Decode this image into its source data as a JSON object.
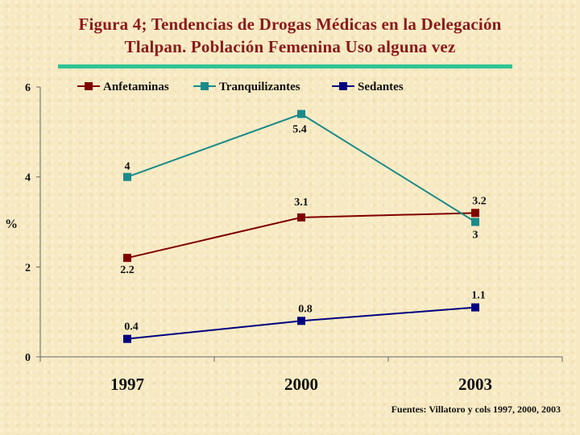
{
  "title": {
    "line1": "Figura 4; Tendencias de Drogas Médicas en  la Delegación",
    "line2": "Tlalpan. Población Femenina Uso alguna vez"
  },
  "source": "Fuentes: Villatoro y cols 1997, 2000, 2003",
  "chart_data": {
    "type": "line",
    "categories": [
      "1997",
      "2000",
      "2003"
    ],
    "ylabel": "%",
    "xlabel": "",
    "ylim": [
      0,
      6
    ],
    "yticks": [
      0,
      2,
      4,
      6
    ],
    "grid": false,
    "legend_position": "top",
    "series": [
      {
        "name": "Anfetaminas",
        "values": [
          2.2,
          3.1,
          3.2
        ],
        "color": "#800000",
        "labels": [
          "2.2",
          "3.1",
          "3.2"
        ]
      },
      {
        "name": "Tranquilizantes",
        "values": [
          4,
          5.4,
          3
        ],
        "color": "#1a8a8a",
        "labels": [
          "4",
          "5.4",
          "3"
        ]
      },
      {
        "name": "Sedantes",
        "values": [
          0.4,
          0.8,
          1.1
        ],
        "color": "#000080",
        "labels": [
          "0.4",
          "0.8",
          "1.1"
        ]
      }
    ]
  }
}
